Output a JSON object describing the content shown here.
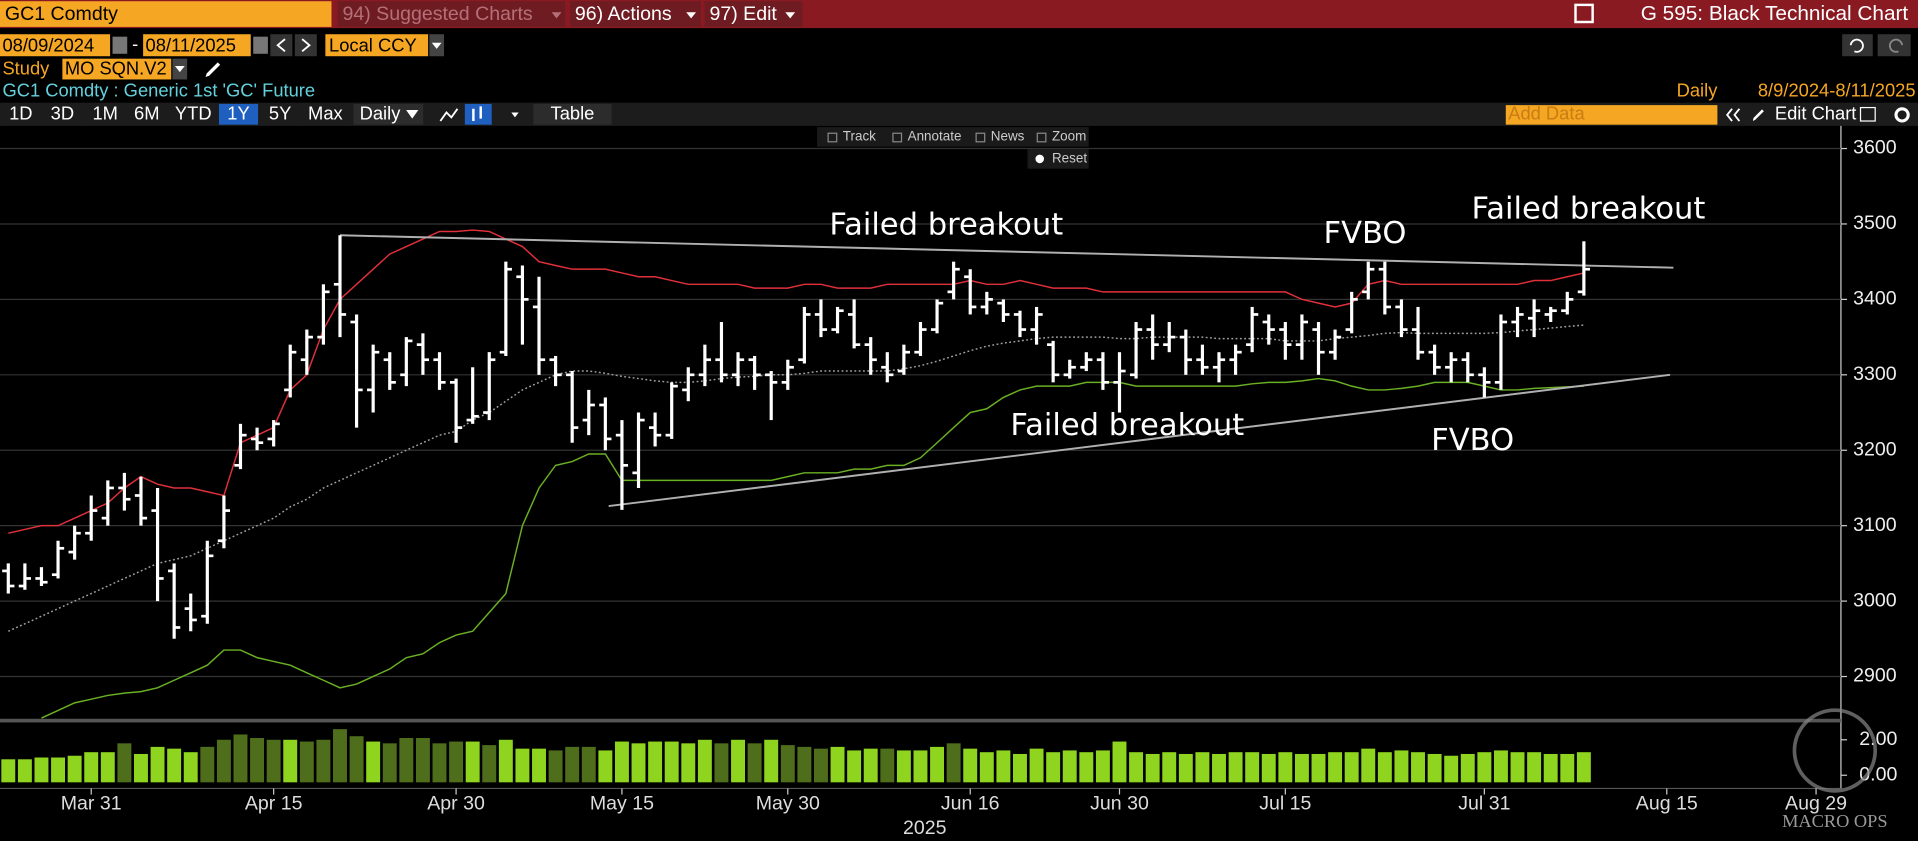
{
  "ui": {
    "ticker": "GC1 Comdty",
    "menu_suggested": "94) Suggested Charts",
    "menu_actions": "96) Actions",
    "menu_edit": "97) Edit",
    "page_title": "G 595: Black Technical Chart",
    "start_date": "08/09/2024",
    "date_sep": "-",
    "end_date": "08/11/2025",
    "currency": "Local CCY",
    "study_label": "Study",
    "study": "MO SQN.V2",
    "security": "GC1 Comdty : Generic 1st 'GC' Future",
    "periodicity": "Daily",
    "date_range": "8/9/2024-8/11/2025",
    "ranges": [
      "1D",
      "3D",
      "1M",
      "6M",
      "YTD",
      "1Y",
      "5Y",
      "Max"
    ],
    "frequency_button": "Daily",
    "table_button": "Table",
    "add_data": "Add Data",
    "edit_chart": "Edit Chart",
    "tools": [
      "Track",
      "Annotate",
      "News",
      "Zoom"
    ],
    "reset": "Reset",
    "watermark": "MACRO OPS"
  },
  "chart_data": {
    "type": "ohlc",
    "xlabel": "2025",
    "categories": [
      null,
      null,
      null,
      null,
      null,
      "Mar 31",
      null,
      null,
      null,
      null,
      null,
      null,
      null,
      null,
      null,
      null,
      "Apr 15",
      null,
      null,
      null,
      null,
      null,
      null,
      null,
      null,
      null,
      null,
      "Apr 30",
      null,
      null,
      null,
      null,
      null,
      null,
      null,
      null,
      null,
      "May 15",
      null,
      null,
      null,
      null,
      null,
      null,
      null,
      null,
      null,
      "May 30",
      null,
      null,
      null,
      null,
      null,
      null,
      null,
      null,
      null,
      null,
      "Jun 16",
      null,
      null,
      null,
      null,
      null,
      null,
      null,
      null,
      "Jun 30",
      null,
      null,
      null,
      null,
      null,
      null,
      null,
      null,
      null,
      "Jul 15",
      null,
      null,
      null,
      null,
      null,
      null,
      null,
      null,
      null,
      null,
      null,
      "Jul 31",
      null,
      null,
      null,
      null,
      null,
      null,
      null,
      null,
      null,
      null,
      "Aug 15",
      null,
      null,
      null,
      null,
      null,
      null,
      null,
      null,
      "Aug 29",
      null
    ],
    "ohlc": {
      "color": "#ffffff",
      "open": [
        3040,
        3020,
        3030,
        3035,
        3065,
        3090,
        3110,
        3150,
        3140,
        3120,
        3040,
        2990,
        2980,
        3080,
        3180,
        3215,
        3215,
        3280,
        3320,
        3350,
        3420,
        3370,
        3280,
        3320,
        3300,
        3340,
        3320,
        3290,
        3240,
        3250,
        3330,
        3430,
        3390,
        3320,
        3300,
        3240,
        3260,
        3220,
        3170,
        3230,
        3220,
        3280,
        3300,
        3320,
        3300,
        3320,
        3300,
        3290,
        3320,
        3380,
        3360,
        3380,
        3340,
        3310,
        3305,
        3330,
        3360,
        3410,
        3430,
        3390,
        3395,
        3380,
        3360,
        3340,
        3300,
        3310,
        3320,
        3290,
        3300,
        3360,
        3340,
        3350,
        3320,
        3310,
        3320,
        3340,
        3370,
        3360,
        3340,
        3360,
        3330,
        3360,
        3410,
        3440,
        3390,
        3360,
        3330,
        3310,
        3320,
        3300,
        3290,
        3370,
        3375,
        3380,
        3385,
        3410,
        null,
        null,
        null,
        null,
        null,
        null,
        null,
        null,
        null,
        null,
        null,
        null,
        null,
        null,
        null
      ],
      "high": [
        3050,
        3050,
        3045,
        3080,
        3100,
        3140,
        3160,
        3170,
        3165,
        3150,
        3050,
        3010,
        3080,
        3140,
        3235,
        3230,
        3240,
        3340,
        3360,
        3420,
        3485,
        3380,
        3340,
        3330,
        3350,
        3355,
        3330,
        3295,
        3310,
        3330,
        3450,
        3445,
        3430,
        3325,
        3305,
        3280,
        3270,
        3240,
        3250,
        3250,
        3290,
        3310,
        3340,
        3370,
        3330,
        3325,
        3305,
        3320,
        3390,
        3400,
        3390,
        3400,
        3350,
        3330,
        3340,
        3370,
        3400,
        3450,
        3440,
        3410,
        3400,
        3385,
        3390,
        3345,
        3320,
        3330,
        3330,
        3330,
        3370,
        3380,
        3370,
        3360,
        3340,
        3330,
        3340,
        3390,
        3380,
        3370,
        3380,
        3370,
        3360,
        3410,
        3450,
        3450,
        3400,
        3390,
        3340,
        3330,
        3330,
        3310,
        3380,
        3390,
        3400,
        3390,
        3410,
        3477,
        null,
        null,
        null,
        null,
        null,
        null,
        null,
        null,
        null,
        null,
        null,
        null,
        null,
        null,
        null
      ],
      "low": [
        3010,
        3015,
        3020,
        3030,
        3055,
        3080,
        3100,
        3120,
        3100,
        3000,
        2950,
        2960,
        2970,
        3070,
        3175,
        3200,
        3205,
        3270,
        3300,
        3340,
        3350,
        3230,
        3250,
        3280,
        3285,
        3300,
        3280,
        3210,
        3235,
        3240,
        3325,
        3340,
        3300,
        3285,
        3210,
        3220,
        3200,
        3121,
        3150,
        3205,
        3215,
        3265,
        3285,
        3290,
        3285,
        3280,
        3240,
        3280,
        3315,
        3350,
        3355,
        3335,
        3300,
        3290,
        3300,
        3325,
        3355,
        3400,
        3380,
        3380,
        3370,
        3350,
        3340,
        3290,
        3295,
        3305,
        3280,
        3250,
        3295,
        3320,
        3330,
        3300,
        3300,
        3290,
        3300,
        3330,
        3340,
        3320,
        3320,
        3300,
        3320,
        3355,
        3400,
        3380,
        3350,
        3320,
        3300,
        3290,
        3290,
        3270,
        3280,
        3350,
        3350,
        3370,
        3380,
        3405,
        null,
        null,
        null,
        null,
        null,
        null,
        null,
        null,
        null,
        null,
        null,
        null,
        null,
        null,
        null
      ],
      "close": [
        3020,
        3030,
        3025,
        3070,
        3090,
        3120,
        3150,
        3135,
        3110,
        3030,
        2965,
        2975,
        3060,
        3120,
        3220,
        3210,
        3235,
        3330,
        3350,
        3410,
        3380,
        3280,
        3330,
        3290,
        3345,
        3320,
        3290,
        3230,
        3245,
        3320,
        3440,
        3400,
        3320,
        3300,
        3230,
        3260,
        3215,
        3180,
        3240,
        3220,
        3285,
        3300,
        3320,
        3300,
        3320,
        3300,
        3290,
        3310,
        3380,
        3360,
        3385,
        3340,
        3320,
        3300,
        3330,
        3360,
        3395,
        3440,
        3390,
        3400,
        3380,
        3360,
        3380,
        3300,
        3310,
        3320,
        3290,
        3305,
        3360,
        3340,
        3350,
        3320,
        3310,
        3320,
        3330,
        3380,
        3360,
        3340,
        3370,
        3330,
        3350,
        3400,
        3440,
        3390,
        3360,
        3330,
        3310,
        3320,
        3300,
        3290,
        3370,
        3380,
        3385,
        3385,
        3400,
        3440,
        null,
        null,
        null,
        null,
        null,
        null,
        null,
        null,
        null,
        null,
        null,
        null,
        null,
        null,
        null
      ]
    },
    "overlays": [
      {
        "color": "#e0303a",
        "dash": false,
        "values": [
          3090,
          3095,
          3100,
          3100,
          3110,
          3120,
          3130,
          3150,
          3165,
          3155,
          3150,
          3150,
          3145,
          3140,
          3210,
          3220,
          3230,
          3280,
          3300,
          3360,
          3400,
          3420,
          3440,
          3460,
          3470,
          3480,
          3490,
          3490,
          3492,
          3490,
          3480,
          3470,
          3450,
          3445,
          3440,
          3440,
          3440,
          3435,
          3430,
          3430,
          3425,
          3420,
          3420,
          3420,
          3420,
          3415,
          3415,
          3415,
          3420,
          3420,
          3415,
          3415,
          3415,
          3420,
          3420,
          3420,
          3420,
          3420,
          3425,
          3420,
          3420,
          3425,
          3420,
          3415,
          3415,
          3415,
          3410,
          3410,
          3410,
          3410,
          3410,
          3410,
          3410,
          3410,
          3410,
          3410,
          3410,
          3410,
          3400,
          3395,
          3390,
          3395,
          3420,
          3425,
          3420,
          3420,
          3420,
          3420,
          3420,
          3420,
          3420,
          3420,
          3425,
          3425,
          3430,
          3435,
          null,
          null,
          null,
          null,
          null,
          null,
          null,
          null,
          null,
          null,
          null,
          null,
          null,
          null,
          null
        ]
      },
      {
        "color": "#6ab023",
        "dash": false,
        "values": [
          null,
          null,
          2845,
          2855,
          2865,
          2870,
          2875,
          2878,
          2880,
          2885,
          2895,
          2905,
          2915,
          2935,
          2935,
          2925,
          2920,
          2915,
          2905,
          2895,
          2885,
          2890,
          2900,
          2910,
          2925,
          2930,
          2945,
          2955,
          2960,
          2985,
          3010,
          3100,
          3150,
          3180,
          3185,
          3195,
          3195,
          3160,
          3160,
          3160,
          3160,
          3160,
          3160,
          3160,
          3160,
          3160,
          3160,
          3165,
          3170,
          3170,
          3170,
          3175,
          3175,
          3180,
          3180,
          3190,
          3210,
          3230,
          3250,
          3255,
          3270,
          3280,
          3285,
          3285,
          3285,
          3290,
          3290,
          3290,
          3285,
          3285,
          3285,
          3285,
          3285,
          3285,
          3285,
          3288,
          3290,
          3290,
          3292,
          3295,
          3292,
          3285,
          3280,
          3280,
          3282,
          3285,
          3290,
          3290,
          3290,
          3285,
          3280,
          3280,
          3282,
          3283,
          3284,
          3285,
          null,
          null,
          null,
          null,
          null,
          null,
          null,
          null,
          null,
          null,
          null,
          null,
          null,
          null,
          null
        ]
      },
      {
        "color": "#a0a0a0",
        "dash": true,
        "values": [
          2960,
          2970,
          2980,
          2990,
          3000,
          3010,
          3020,
          3030,
          3040,
          3050,
          3055,
          3060,
          3070,
          3080,
          3090,
          3100,
          3110,
          3125,
          3135,
          3150,
          3160,
          3170,
          3180,
          3190,
          3200,
          3210,
          3220,
          3225,
          3240,
          3250,
          3265,
          3280,
          3290,
          3300,
          3305,
          3305,
          3302,
          3298,
          3295,
          3292,
          3290,
          3290,
          3292,
          3295,
          3297,
          3298,
          3300,
          3300,
          3302,
          3305,
          3305,
          3305,
          3305,
          3305,
          3308,
          3312,
          3318,
          3325,
          3332,
          3338,
          3342,
          3345,
          3348,
          3350,
          3350,
          3350,
          3350,
          3348,
          3348,
          3350,
          3350,
          3350,
          3350,
          3348,
          3348,
          3348,
          3348,
          3345,
          3345,
          3345,
          3348,
          3350,
          3352,
          3355,
          3356,
          3355,
          3355,
          3355,
          3355,
          3355,
          3356,
          3358,
          3360,
          3362,
          3364,
          3366,
          null,
          null,
          null,
          null,
          null,
          null,
          null,
          null,
          null,
          null,
          null,
          null,
          null,
          null,
          null
        ]
      }
    ],
    "trendlines": [
      {
        "color": "#b0b0b0",
        "x": [
          20,
          100.4
        ],
        "y": [
          3485,
          3442
        ]
      },
      {
        "color": "#b0b0b0",
        "x": [
          36.2,
          100.2
        ],
        "y": [
          3126,
          3300
        ]
      }
    ],
    "annotations": [
      "Failed breakout",
      "FVBO",
      "Failed breakout",
      "Failed breakout",
      "FVBO"
    ],
    "ylim": [
      2844,
      3630
    ],
    "yticks": [
      2900,
      3000,
      3100,
      3200,
      3300,
      3400,
      3500,
      3600
    ],
    "grid": true,
    "volume": {
      "ylim": [
        -0.4,
        3.0
      ],
      "yticks": [
        {
          "value": 2,
          "label": "2.00"
        },
        {
          "value": 0,
          "label": "0.00"
        }
      ],
      "values": [
        0.9,
        0.9,
        1.0,
        1.0,
        1.1,
        1.3,
        1.3,
        1.8,
        1.2,
        1.6,
        1.5,
        1.3,
        1.6,
        2.0,
        2.3,
        2.1,
        2.0,
        2.0,
        1.9,
        2.0,
        2.6,
        2.2,
        1.9,
        1.8,
        2.1,
        2.1,
        1.8,
        1.9,
        1.9,
        1.7,
        2.0,
        1.5,
        1.5,
        1.4,
        1.6,
        1.6,
        1.4,
        1.9,
        1.8,
        1.9,
        1.9,
        1.8,
        2.0,
        1.8,
        2.0,
        1.8,
        2.0,
        1.7,
        1.6,
        1.5,
        1.6,
        1.4,
        1.5,
        1.5,
        1.4,
        1.4,
        1.6,
        1.8,
        1.5,
        1.3,
        1.4,
        1.2,
        1.5,
        1.3,
        1.4,
        1.3,
        1.4,
        1.9,
        1.3,
        1.2,
        1.3,
        1.2,
        1.3,
        1.2,
        1.3,
        1.3,
        1.2,
        1.3,
        1.2,
        1.2,
        1.3,
        1.3,
        1.5,
        1.3,
        1.4,
        1.3,
        1.2,
        1.1,
        1.2,
        1.3,
        1.4,
        1.3,
        1.3,
        1.2,
        1.2,
        1.3,
        null,
        null,
        null,
        null,
        null,
        null,
        null,
        null,
        null,
        null,
        null,
        null,
        null,
        null,
        null
      ],
      "colors": [
        "#8fd41e",
        "#8fd41e",
        "#8fd41e",
        "#8fd41e",
        "#8fd41e",
        "#8fd41e",
        "#8fd41e",
        "#4f6e1c",
        "#8fd41e",
        "#8fd41e",
        "#8fd41e",
        "#8fd41e",
        "#4f6e1c",
        "#4f6e1c",
        "#4f6e1c",
        "#4f6e1c",
        "#4f6e1c",
        "#8fd41e",
        "#4f6e1c",
        "#4f6e1c",
        "#4f6e1c",
        "#4f6e1c",
        "#8fd41e",
        "#4f6e1c",
        "#4f6e1c",
        "#4f6e1c",
        "#4f6e1c",
        "#4f6e1c",
        "#8fd41e",
        "#4f6e1c",
        "#8fd41e",
        "#8fd41e",
        "#8fd41e",
        "#4f6e1c",
        "#4f6e1c",
        "#4f6e1c",
        "#8fd41e",
        "#8fd41e",
        "#8fd41e",
        "#8fd41e",
        "#8fd41e",
        "#8fd41e",
        "#8fd41e",
        "#4f6e1c",
        "#8fd41e",
        "#4f6e1c",
        "#8fd41e",
        "#4f6e1c",
        "#4f6e1c",
        "#4f6e1c",
        "#8fd41e",
        "#8fd41e",
        "#8fd41e",
        "#4f6e1c",
        "#8fd41e",
        "#8fd41e",
        "#8fd41e",
        "#4f6e1c",
        "#8fd41e",
        "#8fd41e",
        "#8fd41e",
        "#8fd41e",
        "#8fd41e",
        "#8fd41e",
        "#8fd41e",
        "#8fd41e",
        "#8fd41e",
        "#8fd41e",
        "#8fd41e",
        "#8fd41e",
        "#8fd41e",
        "#8fd41e",
        "#8fd41e",
        "#8fd41e",
        "#8fd41e",
        "#8fd41e",
        "#8fd41e",
        "#8fd41e",
        "#8fd41e",
        "#8fd41e",
        "#8fd41e",
        "#8fd41e",
        "#8fd41e",
        "#8fd41e",
        "#8fd41e",
        "#8fd41e",
        "#8fd41e",
        "#8fd41e",
        "#8fd41e",
        "#8fd41e",
        "#8fd41e",
        "#8fd41e",
        "#8fd41e",
        "#8fd41e",
        "#8fd41e",
        "#8fd41e",
        null,
        null,
        null,
        null,
        null,
        null,
        null,
        null,
        null,
        null,
        null,
        null,
        null,
        null,
        null
      ]
    }
  }
}
